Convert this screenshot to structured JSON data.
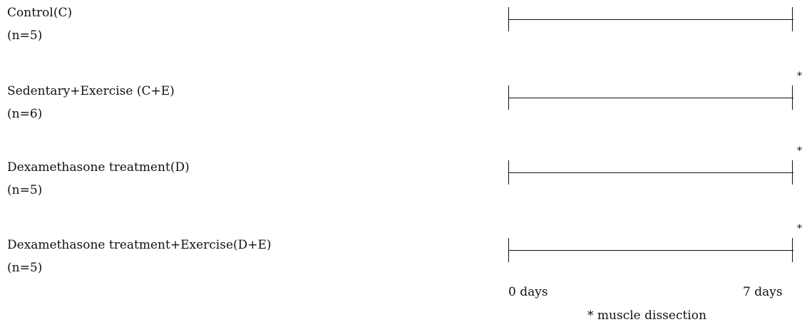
{
  "groups": [
    {
      "label": "Control(C)",
      "n": "(n=5)",
      "dissection_marker": ""
    },
    {
      "label": "Sedentary+Exercise (C+E)",
      "n": "(n=6)",
      "dissection_marker": "*"
    },
    {
      "label": "Dexamethasone treatment(D)",
      "n": "(n=5)",
      "dissection_marker": "*"
    },
    {
      "label": "Dexamethasone treatment+Exercise(D+E)",
      "n": "(n=5)",
      "dissection_marker": "*"
    }
  ],
  "axis": {
    "start": "0 days",
    "end": "7 days"
  },
  "footnote": "* muscle dissection"
}
